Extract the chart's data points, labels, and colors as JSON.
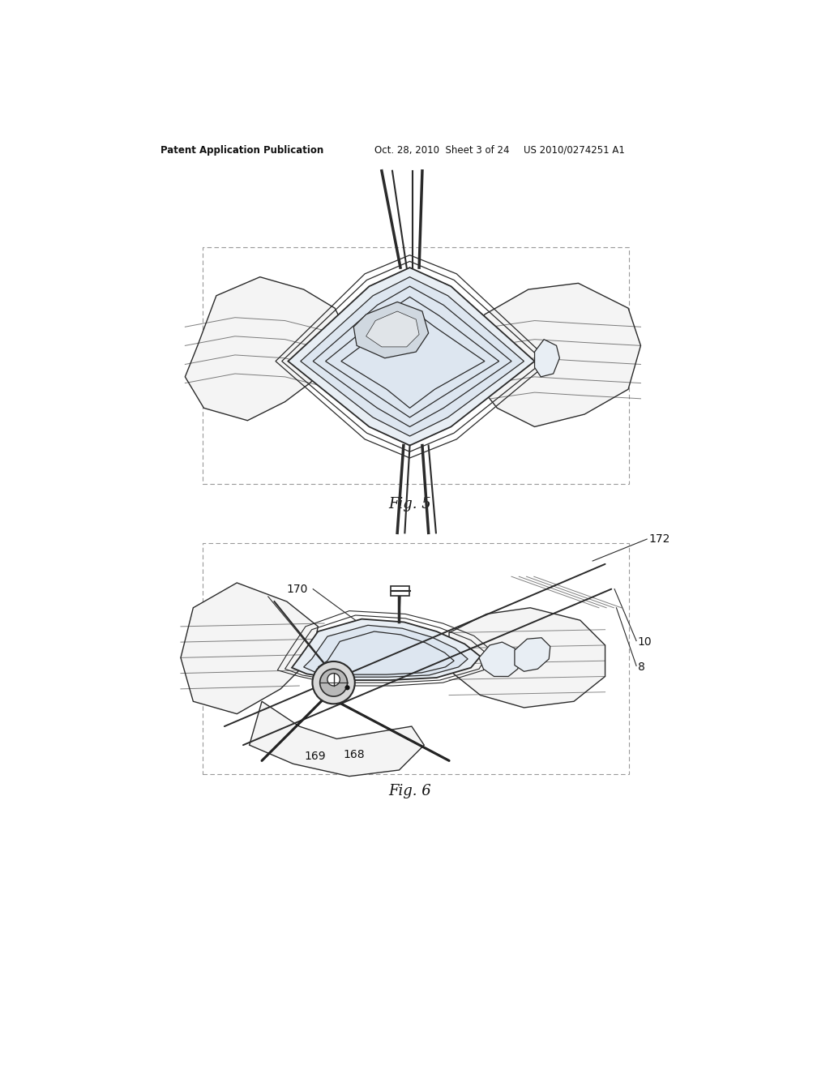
{
  "background_color": "#ffffff",
  "header_left": "Patent Application Publication",
  "header_mid": "Oct. 28, 2010  Sheet 3 of 24",
  "header_right": "US 2010/0274251 A1",
  "fig5_label": "Fig. 5",
  "fig6_label": "Fig. 6",
  "label_172": "172",
  "label_170": "170",
  "label_169": "169",
  "label_168": "168",
  "label_10": "10",
  "label_8": "8",
  "line_color": "#2a2a2a",
  "tissue_fill": "#f4f4f4",
  "joint_fill": "#e8eef4",
  "joint_fill2": "#dde6f0",
  "blob_fill": "#d0d8e0",
  "box_line_color": "#999999"
}
